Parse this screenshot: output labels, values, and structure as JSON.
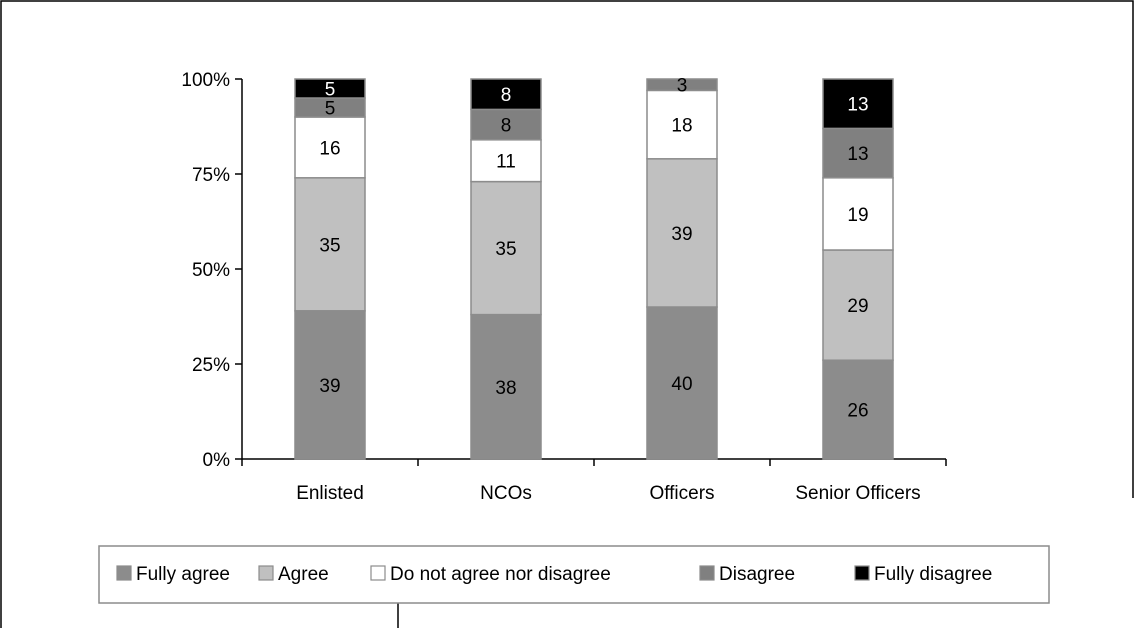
{
  "chart_data": {
    "type": "bar",
    "stacked": true,
    "percent_stacked": true,
    "categories": [
      "Enlisted",
      "NCOs",
      "Officers",
      "Senior Officers"
    ],
    "series": [
      {
        "name": "Fully agree",
        "values": [
          39,
          38,
          40,
          26
        ],
        "color": "#8c8c8c"
      },
      {
        "name": "Agree",
        "values": [
          35,
          35,
          39,
          29
        ],
        "color": "#c0c0c0"
      },
      {
        "name": "Do not agree nor disagree",
        "values": [
          16,
          11,
          18,
          19
        ],
        "color": "#ffffff"
      },
      {
        "name": "Disagree",
        "values": [
          5,
          8,
          3,
          13
        ],
        "color": "#808080"
      },
      {
        "name": "Fully disagree",
        "values": [
          5,
          8,
          0,
          13
        ],
        "color": "#000000"
      }
    ],
    "data_labels": [
      [
        "39",
        "38",
        "40",
        "26"
      ],
      [
        "35",
        "35",
        "39",
        "29"
      ],
      [
        "16",
        "11",
        "18",
        "19"
      ],
      [
        "5",
        "8",
        "3",
        "13"
      ],
      [
        "5",
        "8",
        "",
        "13"
      ]
    ],
    "yticks": [
      "0%",
      "25%",
      "50%",
      "75%",
      "100%"
    ],
    "ylim": [
      0,
      100
    ],
    "title": "",
    "xlabel": "",
    "ylabel": "",
    "grid": false,
    "legend_position": "bottom"
  }
}
